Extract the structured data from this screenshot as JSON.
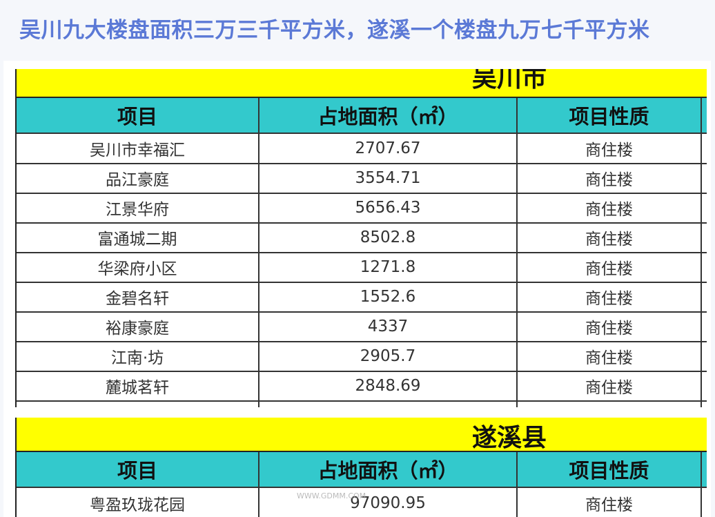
{
  "title": "吴川九大楼盘面积三万三千平方米，遂溪一个楼盘九万七千平方米",
  "tables": [
    {
      "region": "吴川市",
      "headers": [
        "项目",
        "占地面积（㎡）",
        "项目性质"
      ],
      "rows": [
        [
          "吴川市幸福汇",
          "2707.67",
          "商住楼"
        ],
        [
          "品江豪庭",
          "3554.71",
          "商住楼"
        ],
        [
          "江景华府",
          "5656.43",
          "商住楼"
        ],
        [
          "富通城二期",
          "8502.8",
          "商住楼"
        ],
        [
          "华梁府小区",
          "1271.8",
          "商住楼"
        ],
        [
          "金碧名轩",
          "1552.6",
          "商住楼"
        ],
        [
          "裕康豪庭",
          "4337",
          "商住楼"
        ],
        [
          "江南·坊",
          "2905.7",
          "商住楼"
        ],
        [
          "麓城茗轩",
          "2848.69",
          "商住楼"
        ]
      ]
    },
    {
      "region": "遂溪县",
      "headers": [
        "项目",
        "占地面积（㎡）",
        "项目性质"
      ],
      "rows": [
        [
          "粤盈玖珑花园",
          "97090.95",
          "商住楼"
        ]
      ]
    }
  ],
  "watermark": "WWW.GDMM.COM",
  "colors": {
    "title": "#5b79d6",
    "band": "#ffff00",
    "header": "#33c9cc"
  }
}
